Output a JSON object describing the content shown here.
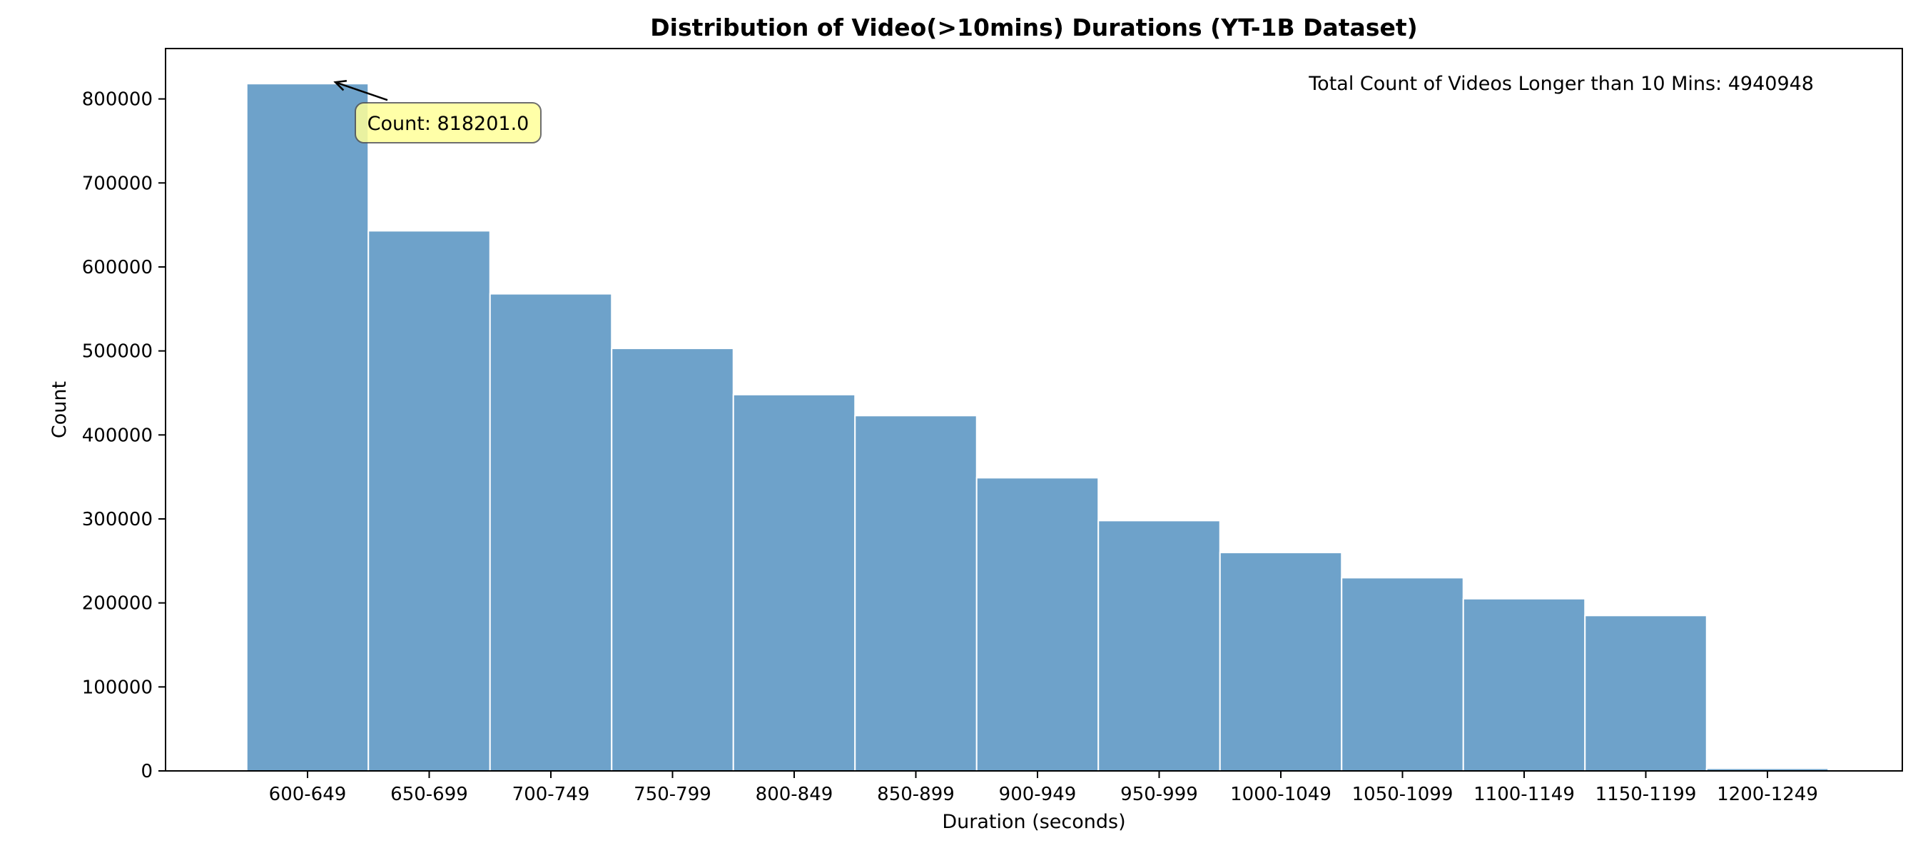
{
  "chart_data": {
    "type": "bar",
    "title": "Distribution of Video(>10mins) Durations (YT-1B Dataset)",
    "xlabel": "Duration (seconds)",
    "ylabel": "Count",
    "categories": [
      "600-649",
      "650-699",
      "700-749",
      "750-799",
      "800-849",
      "850-899",
      "900-949",
      "950-999",
      "1000-1049",
      "1050-1099",
      "1100-1149",
      "1150-1199",
      "1200-1249"
    ],
    "values": [
      818201,
      643000,
      568000,
      503000,
      448000,
      423000,
      349000,
      298000,
      260000,
      230000,
      205000,
      185000,
      3000
    ],
    "yticks": [
      0,
      100000,
      200000,
      300000,
      400000,
      500000,
      600000,
      700000,
      800000
    ],
    "ylim": [
      0,
      860000
    ],
    "grid": false,
    "legend": "none",
    "bar_color": "#6ea2ca",
    "bar_edge_color": "#ffffff",
    "annotation": {
      "text": "Count: 818201.0",
      "target_category": "600-649",
      "target_value": 818201,
      "box_color": "#ffff99"
    },
    "note": "Total Count of Videos Longer than 10 Mins: 4940948"
  }
}
